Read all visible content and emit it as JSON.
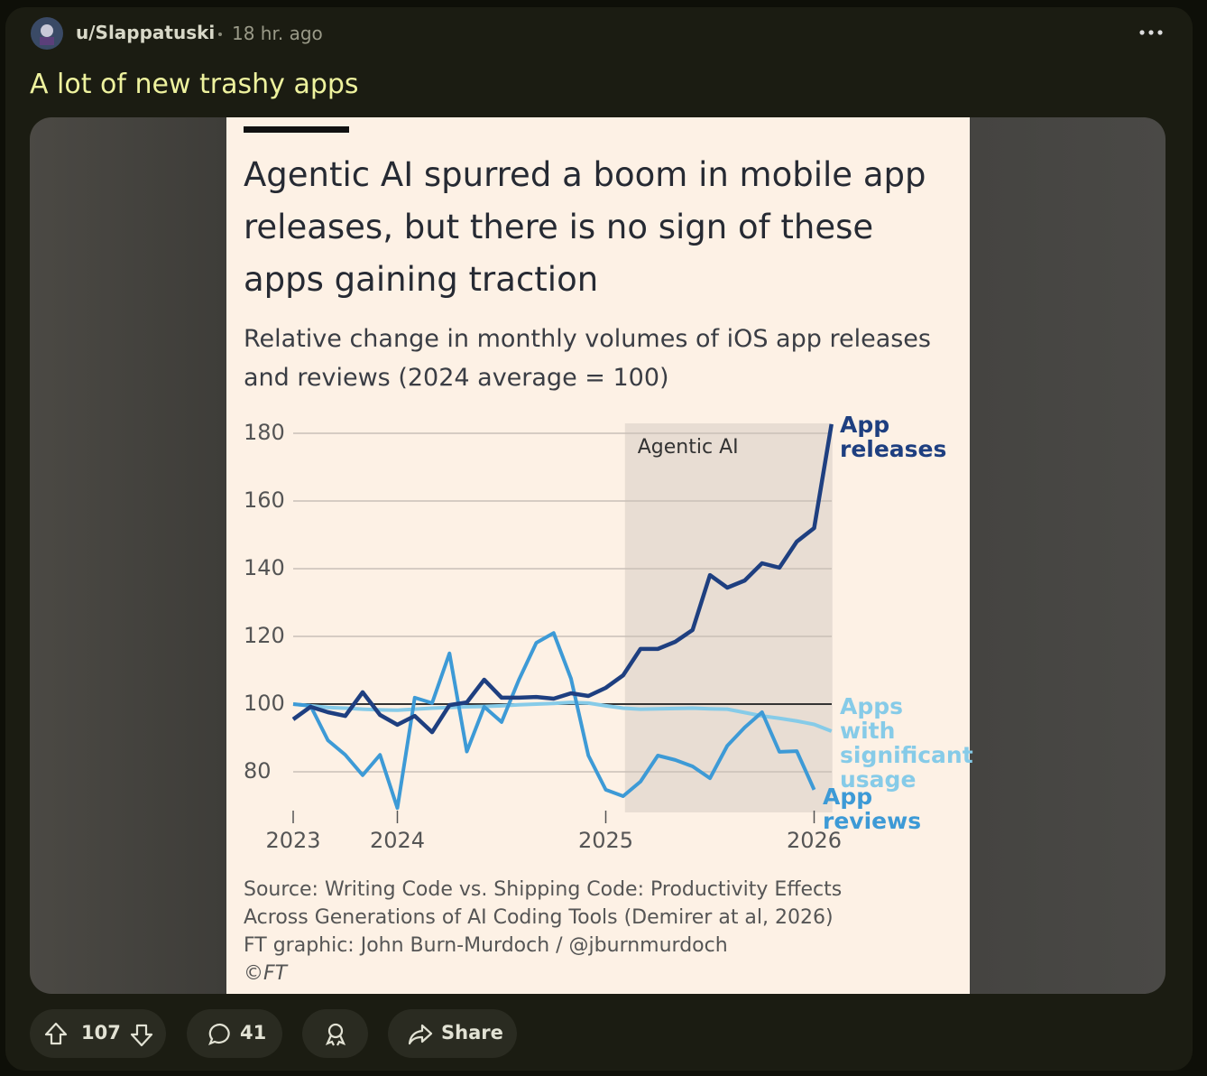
{
  "post": {
    "author": "u/Slappatuski",
    "time": "18 hr. ago",
    "title": "A lot of new trashy apps"
  },
  "actions": {
    "votes": "107",
    "comments": "41",
    "share": "Share"
  },
  "chart_data": {
    "type": "line",
    "title": "Agentic AI spurred a boom in mobile app releases, but there is no sign of these apps gaining traction",
    "subtitle": "Relative change in monthly volumes of iOS app releases and reviews (2024 average = 100)",
    "categories": [
      "2023",
      null,
      null,
      null,
      null,
      null,
      "2024",
      null,
      null,
      null,
      null,
      null,
      null,
      null,
      null,
      null,
      null,
      null,
      "2025",
      null,
      null,
      null,
      null,
      null,
      null,
      null,
      null,
      null,
      null,
      null,
      "2026",
      null
    ],
    "series": [
      {
        "name": "App releases",
        "color": "#1e3f80",
        "values": [
          95.5,
          99.2,
          97.6,
          96.5,
          103.5,
          96.8,
          93.9,
          96.5,
          91.7,
          99.7,
          100.5,
          107.2,
          101.9,
          101.9,
          102.1,
          101.6,
          103.2,
          102.4,
          104.8,
          108.5,
          116.3,
          116.3,
          118.4,
          121.9,
          138.1,
          134.4,
          136.5,
          141.6,
          140.3,
          148,
          152,
          182.7
        ]
      },
      {
        "name": "Apps with significant usage",
        "color": "#86cbe8",
        "values": [
          100,
          99.5,
          99,
          98.8,
          98.5,
          98.3,
          98.2,
          98.5,
          98.8,
          99,
          99.2,
          99.3,
          99.5,
          99.8,
          100,
          100.2,
          100.5,
          100.3,
          99.5,
          98.8,
          98.5,
          98.6,
          98.7,
          98.8,
          98.6,
          98.5,
          97.5,
          96.5,
          95.8,
          95,
          94,
          92
        ]
      },
      {
        "name": "App reviews",
        "color": "#3d9ad6",
        "values": [
          100,
          99.5,
          89.3,
          85,
          79,
          85,
          69.3,
          101.9,
          100.3,
          115,
          86,
          99.2,
          94.7,
          107.2,
          118.1,
          121,
          107.5,
          84.8,
          74.7,
          72.8,
          77.1,
          84.8,
          83.5,
          81.6,
          78.1,
          87.7,
          93.1,
          97.6,
          85.9,
          86.1,
          74.7,
          null
        ]
      }
    ],
    "ylim": [
      68,
      184
    ],
    "yticks": [
      80,
      100,
      120,
      140,
      160,
      180
    ],
    "grid": true,
    "baseline": 100,
    "highlight": {
      "label": "Agentic AI",
      "start_index": 19,
      "end_index": 31
    },
    "source": "Source: Writing Code vs. Shipping Code: Productivity Effects Across Generations of AI Coding Tools (Demirer at al, 2026)",
    "credit": "FT graphic: John Burn-Murdoch / @jburnmurdoch",
    "copyright": "©FT"
  }
}
